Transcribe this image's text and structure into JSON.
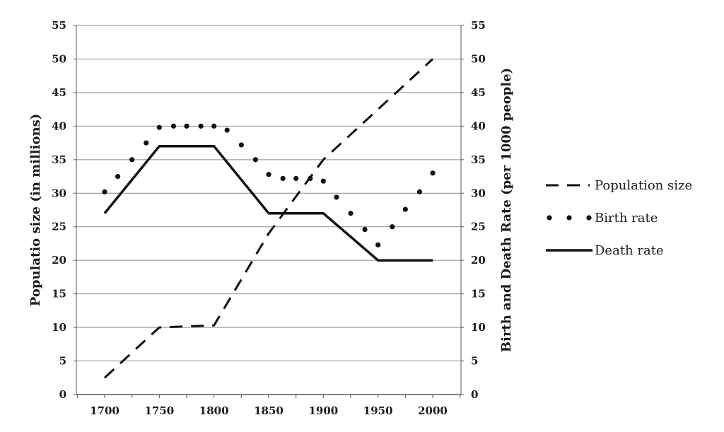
{
  "chart_data": {
    "type": "line",
    "x_ticks": [
      1700,
      1750,
      1800,
      1850,
      1900,
      1950,
      2000
    ],
    "xlim": [
      1700,
      2000
    ],
    "y_ticks": [
      0,
      5,
      10,
      15,
      20,
      25,
      30,
      35,
      40,
      45,
      50,
      55
    ],
    "ylim": [
      0,
      55
    ],
    "ylabel_left": "Populatio size (in millions)",
    "ylabel_right": "Birth and Death Rate (per 1000 people)",
    "grid": true,
    "legend_position": "right",
    "series": [
      {
        "name": "Population size",
        "style": "dashed",
        "axis": "left",
        "x": [
          1700,
          1750,
          1800,
          1850,
          1900,
          2000
        ],
        "y": [
          2.5,
          10,
          10.3,
          24,
          35,
          50
        ]
      },
      {
        "name": "Birth rate",
        "style": "dotted",
        "axis": "right",
        "x": [
          1700,
          1712,
          1725,
          1738,
          1750,
          1763,
          1775,
          1788,
          1800,
          1812,
          1825,
          1838,
          1850,
          1863,
          1875,
          1888,
          1900,
          1912,
          1925,
          1938,
          1950,
          1963,
          1975,
          1988,
          2000
        ],
        "y": [
          30.2,
          32.5,
          35,
          37.5,
          39.8,
          40,
          40,
          40,
          40,
          39.4,
          37.2,
          35,
          32.8,
          32.2,
          32.2,
          32.2,
          31.8,
          29.4,
          27,
          24.6,
          22.3,
          25,
          27.6,
          30.2,
          33
        ]
      },
      {
        "name": "Death rate",
        "style": "solid",
        "axis": "right",
        "x": [
          1700,
          1750,
          1800,
          1850,
          1900,
          1950,
          2000
        ],
        "y": [
          27,
          37,
          37,
          27,
          27,
          20,
          20
        ]
      }
    ]
  }
}
